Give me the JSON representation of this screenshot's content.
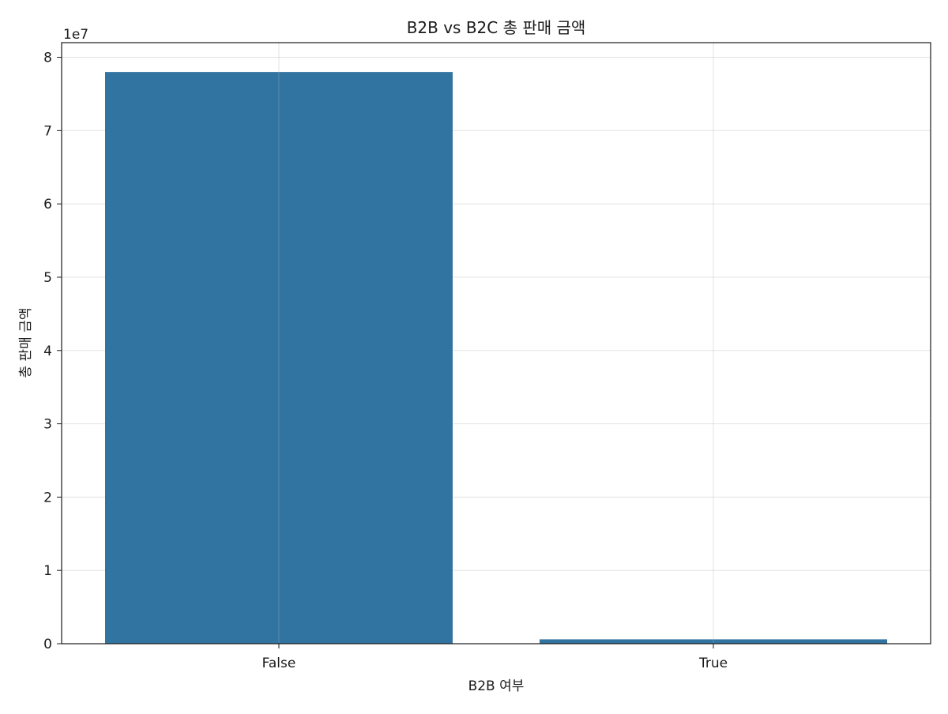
{
  "colors": {
    "bar": "#3274a1",
    "background": "#ffffff",
    "text": "#1a1a1a"
  },
  "chart_data": {
    "type": "bar",
    "title": "B2B vs B2C 총 판매 금액",
    "xlabel": "B2B 여부",
    "ylabel": "총 판매 금액",
    "y_offset_label": "1e7",
    "categories": [
      "False",
      "True"
    ],
    "values": [
      78000000,
      600000
    ],
    "ylim": [
      0,
      82000000
    ],
    "y_ticks": [
      0,
      10000000,
      20000000,
      30000000,
      40000000,
      50000000,
      60000000,
      70000000,
      80000000
    ],
    "y_tick_labels": [
      "0",
      "1",
      "2",
      "3",
      "4",
      "5",
      "6",
      "7",
      "8"
    ],
    "grid": true,
    "legend": "none"
  }
}
